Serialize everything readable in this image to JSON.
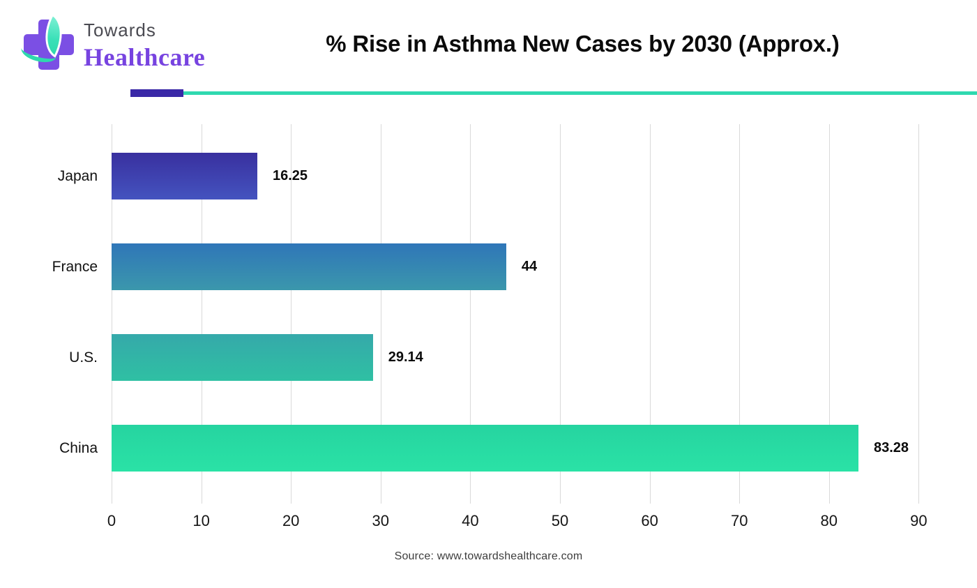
{
  "logo": {
    "line1": "Towards",
    "line2": "Healthcare",
    "purple": "#7b4fe4",
    "teal": "#2fd9ae",
    "towards_gray": "#4b4b52",
    "healthcare_purple": "#7743e0"
  },
  "title": "% Rise in Asthma New Cases by 2030 (Approx.)",
  "divider": {
    "accent_purple": "#3a28a7",
    "line_teal": "#2fd9b0"
  },
  "source": "Source: www.towardshealthcare.com",
  "chart_data": {
    "type": "bar",
    "orientation": "horizontal",
    "title": "% Rise in Asthma New Cases by 2030 (Approx.)",
    "categories": [
      "Japan",
      "France",
      "U.S.",
      "China"
    ],
    "values": [
      16.25,
      44,
      29.14,
      83.28
    ],
    "value_labels": [
      "16.25",
      "44",
      "29.14",
      "83.28"
    ],
    "bar_colors": [
      {
        "top": "#39309f",
        "bottom": "#4453bf"
      },
      {
        "top": "#2f76b8",
        "bottom": "#3b97ac"
      },
      {
        "top": "#35a9aa",
        "bottom": "#2fc0a3"
      },
      {
        "top": "#26d4a0",
        "bottom": "#2ae2a6"
      }
    ],
    "xticks": [
      0,
      10,
      20,
      30,
      40,
      50,
      60,
      70,
      80,
      90
    ],
    "xlim": [
      0,
      96.5
    ],
    "grid": true,
    "gridline_color": "#d9d9d9",
    "xlabel": "",
    "ylabel": "",
    "legend": false
  }
}
